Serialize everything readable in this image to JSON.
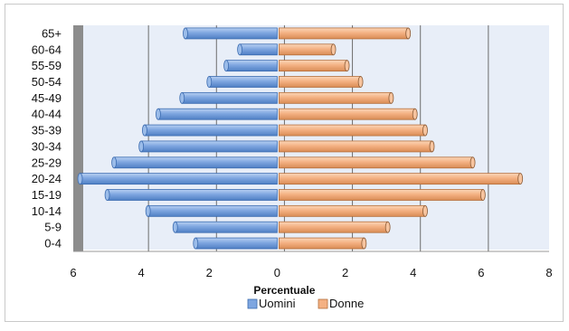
{
  "chart_data": {
    "type": "bar",
    "orientation": "horizontal",
    "style": "population-pyramid",
    "categories": [
      "65+",
      "60-64",
      "55-59",
      "50-54",
      "45-49",
      "40-44",
      "35-39",
      "30-34",
      "25-29",
      "20-24",
      "15-19",
      "10-14",
      "5-9",
      "0-4"
    ],
    "series": [
      {
        "name": "Uomini",
        "color": "#7ea6e0",
        "values": [
          2.7,
          1.1,
          1.5,
          2.0,
          2.8,
          3.5,
          3.9,
          4.0,
          4.8,
          5.8,
          5.0,
          3.8,
          3.0,
          2.4
        ]
      },
      {
        "name": "Donne",
        "color": "#f4b183",
        "values": [
          3.8,
          1.6,
          2.0,
          2.4,
          3.3,
          4.0,
          4.3,
          4.5,
          5.7,
          7.1,
          6.0,
          4.3,
          3.2,
          2.5
        ]
      }
    ],
    "xticks": [
      "6",
      "4",
      "2",
      "0",
      "2",
      "4",
      "6",
      "8"
    ],
    "xlim": [
      -6,
      8
    ],
    "xlabel": "Percentuale",
    "ylabel": "",
    "title": "",
    "grid": true,
    "legend": "bottom",
    "colors": {
      "plot_background": "#e8eef8",
      "grid": "#6d6d6d",
      "side_wall": "#8c8c8c"
    }
  }
}
